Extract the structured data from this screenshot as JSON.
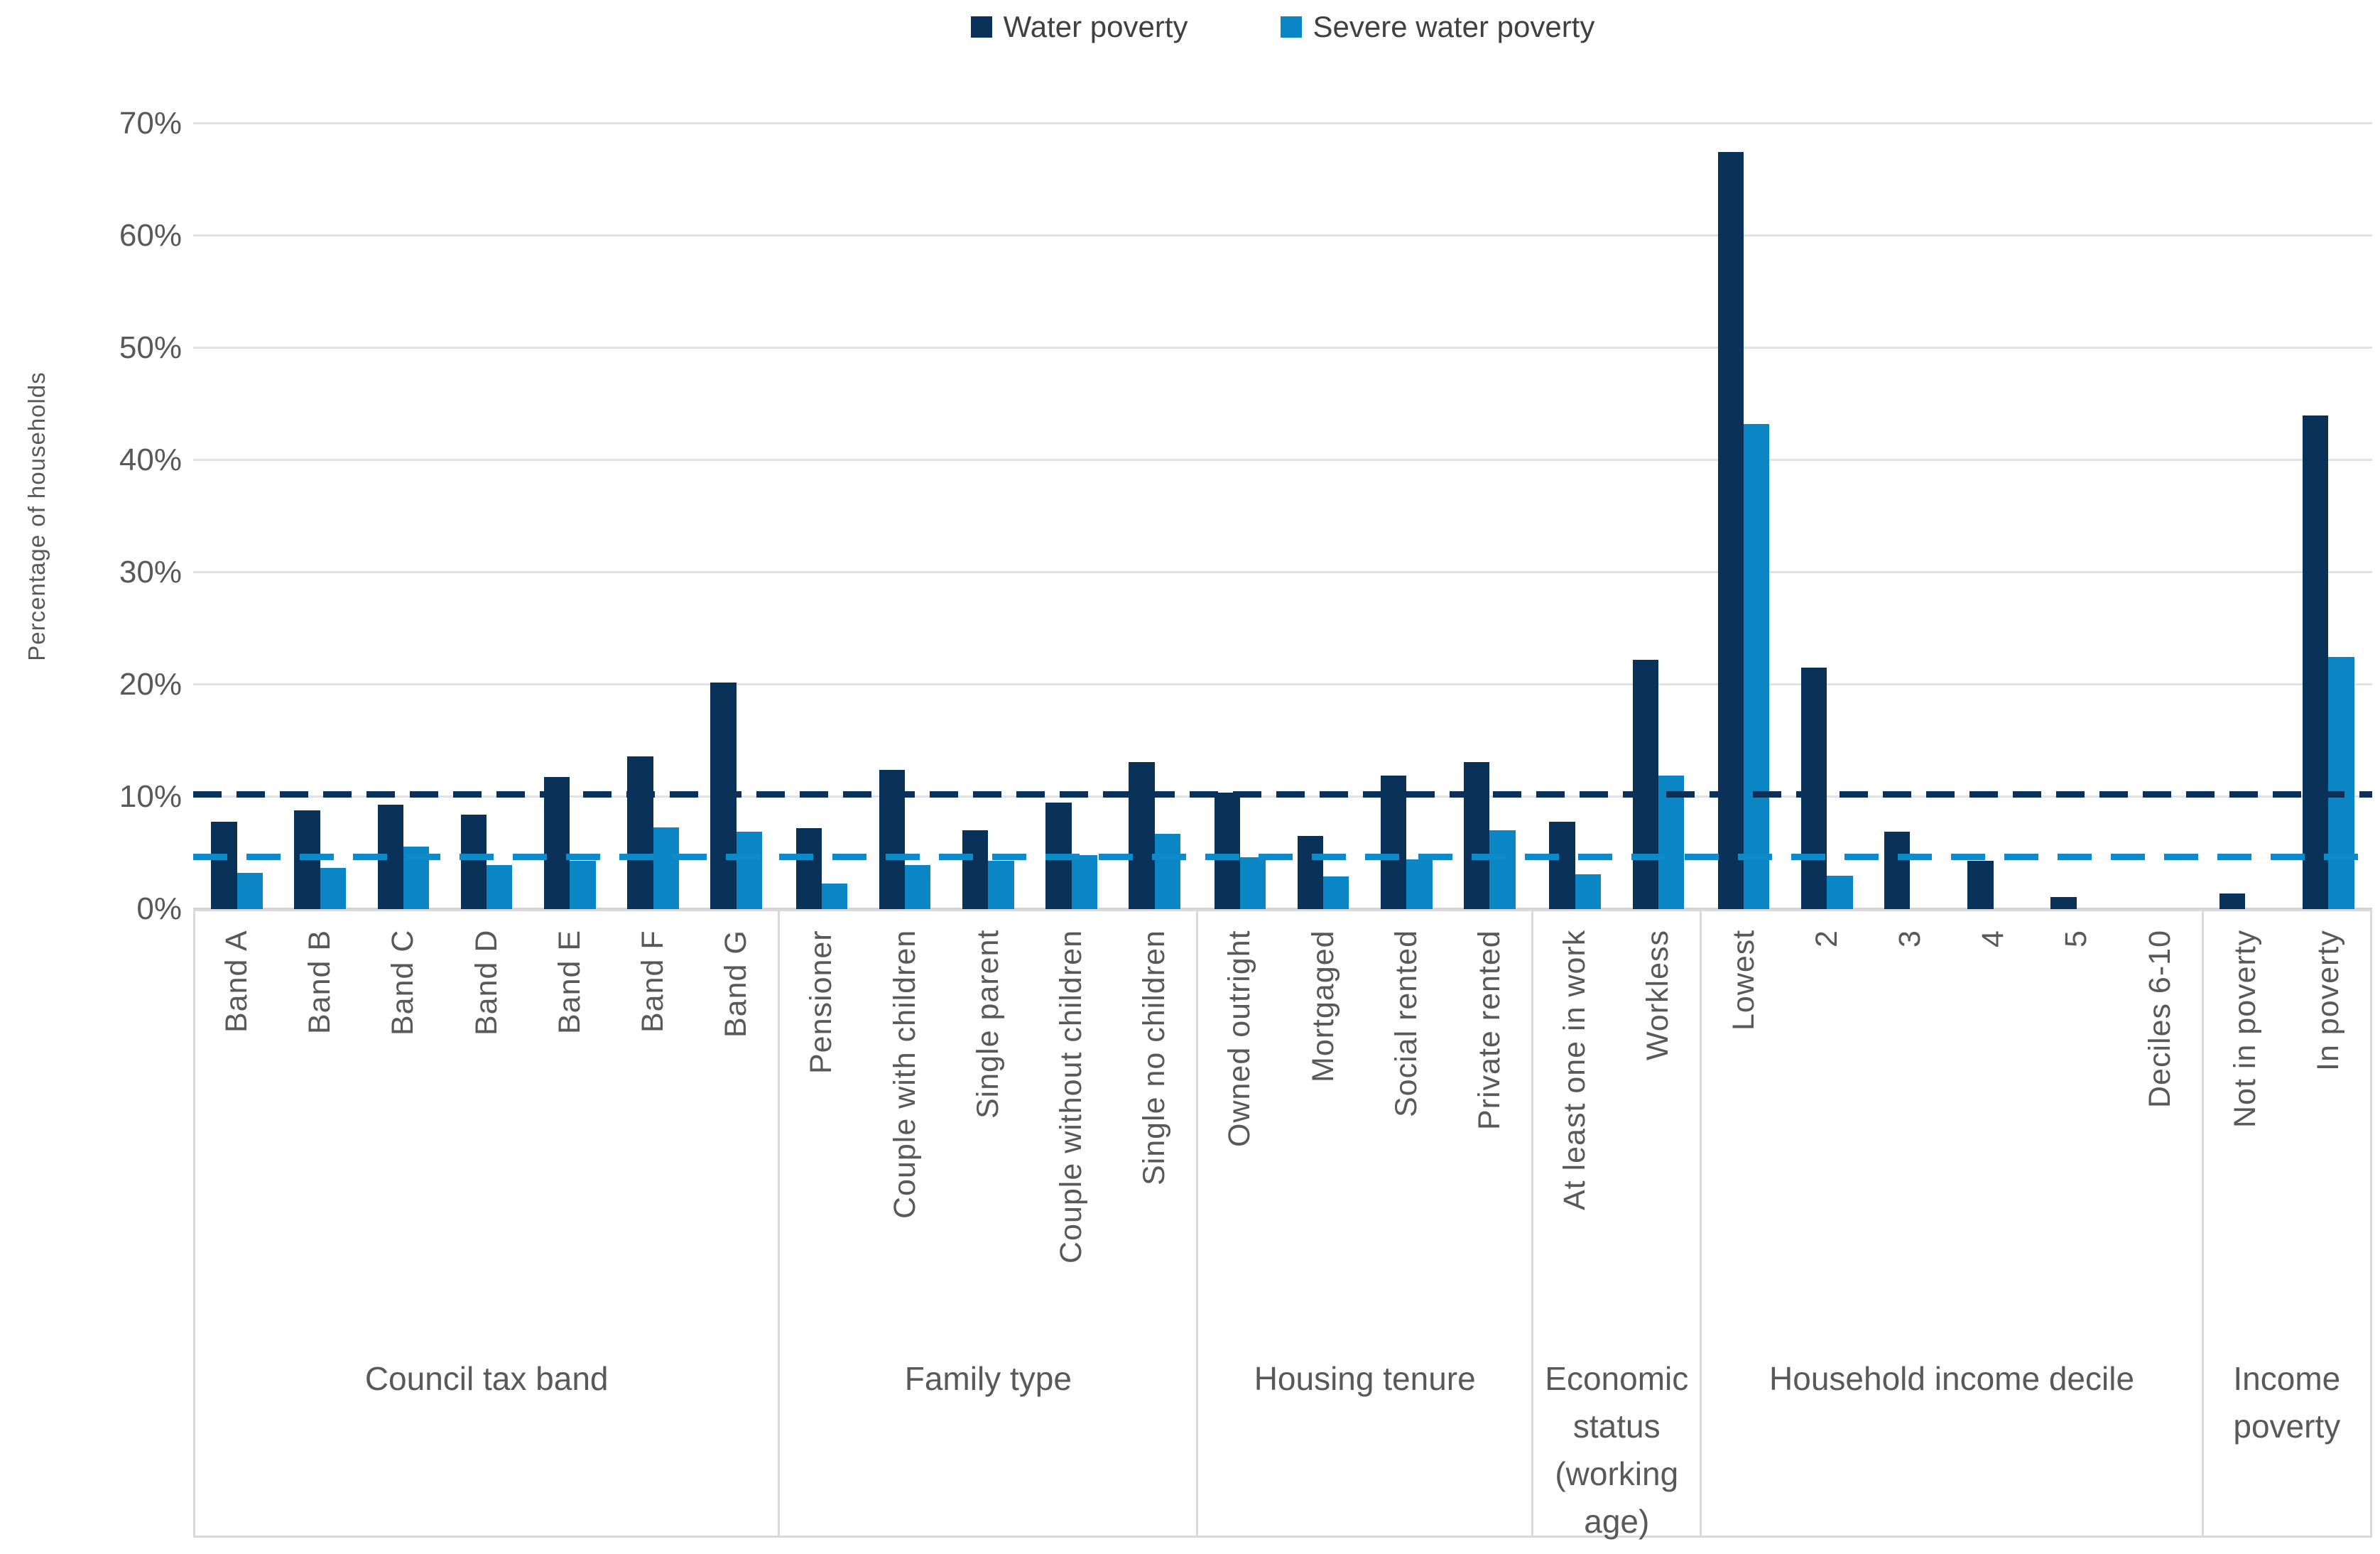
{
  "legend": {
    "items": [
      {
        "label": "Water poverty",
        "color": "#0a3158"
      },
      {
        "label": "Severe water poverty",
        "color": "#0b86c4"
      }
    ]
  },
  "y_axis": {
    "title": "Percentage of households",
    "ticks": [
      "0%",
      "10%",
      "20%",
      "30%",
      "40%",
      "50%",
      "60%",
      "70%"
    ],
    "tick_values": [
      0,
      10,
      20,
      30,
      40,
      50,
      60,
      70
    ],
    "max": 70
  },
  "colors": {
    "water_poverty": "#0a3158",
    "severe_water_poverty": "#0b86c4",
    "water_poverty_dash": "#0a3158",
    "severe_water_poverty_dash": "#0f8ac9",
    "gridline": "#e2e2e2",
    "axis_text": "#595959"
  },
  "chart_data": {
    "type": "bar",
    "title": "",
    "xlabel": "",
    "ylabel": "Percentage of households",
    "ylim": [
      0,
      70
    ],
    "grid": true,
    "legend_position": "top-center",
    "series_names": [
      "Water poverty",
      "Severe water poverty"
    ],
    "groups": [
      {
        "label": "Council tax band",
        "categories": [
          "Band A",
          "Band B",
          "Band C",
          "Band D",
          "Band E",
          "Band F",
          "Band G"
        ],
        "water_poverty": [
          7.8,
          8.8,
          9.3,
          8.4,
          11.8,
          13.6,
          20.2
        ],
        "severe_water_poverty": [
          3.2,
          3.7,
          5.6,
          3.9,
          4.3,
          7.3,
          6.9
        ]
      },
      {
        "label": "Family type",
        "categories": [
          "Pensioner",
          "Couple with children",
          "Single parent",
          "Couple without children",
          "Single no children"
        ],
        "water_poverty": [
          7.2,
          12.4,
          7.0,
          9.5,
          13.1
        ],
        "severe_water_poverty": [
          2.3,
          3.9,
          4.3,
          4.8,
          6.7
        ]
      },
      {
        "label": "Housing tenure",
        "categories": [
          "Owned outright",
          "Mortgaged",
          "Social rented",
          "Private rented"
        ],
        "water_poverty": [
          10.4,
          6.5,
          11.9,
          13.1
        ],
        "severe_water_poverty": [
          4.6,
          2.9,
          4.4,
          7.0
        ]
      },
      {
        "label": "Economic status (working age)",
        "categories": [
          "At least one in work",
          "Workless"
        ],
        "water_poverty": [
          7.8,
          22.2
        ],
        "severe_water_poverty": [
          3.1,
          11.9
        ]
      },
      {
        "label": "Household income decile",
        "categories": [
          "Lowest",
          "2",
          "3",
          "4",
          "5",
          "Deciles 6-10"
        ],
        "water_poverty": [
          67.5,
          21.5,
          6.9,
          4.3,
          1.1,
          0
        ],
        "severe_water_poverty": [
          43.2,
          3.0,
          0,
          0,
          0,
          0
        ]
      },
      {
        "label": "Income poverty",
        "categories": [
          "Not in poverty",
          "In poverty"
        ],
        "water_poverty": [
          1.4,
          44.0
        ],
        "severe_water_poverty": [
          0,
          22.5
        ]
      }
    ],
    "reference_lines": [
      {
        "name": "Water poverty overall average",
        "value": 10.2,
        "style": "dashed"
      },
      {
        "name": "Severe water poverty overall average",
        "value": 4.6,
        "style": "dashed"
      }
    ]
  }
}
